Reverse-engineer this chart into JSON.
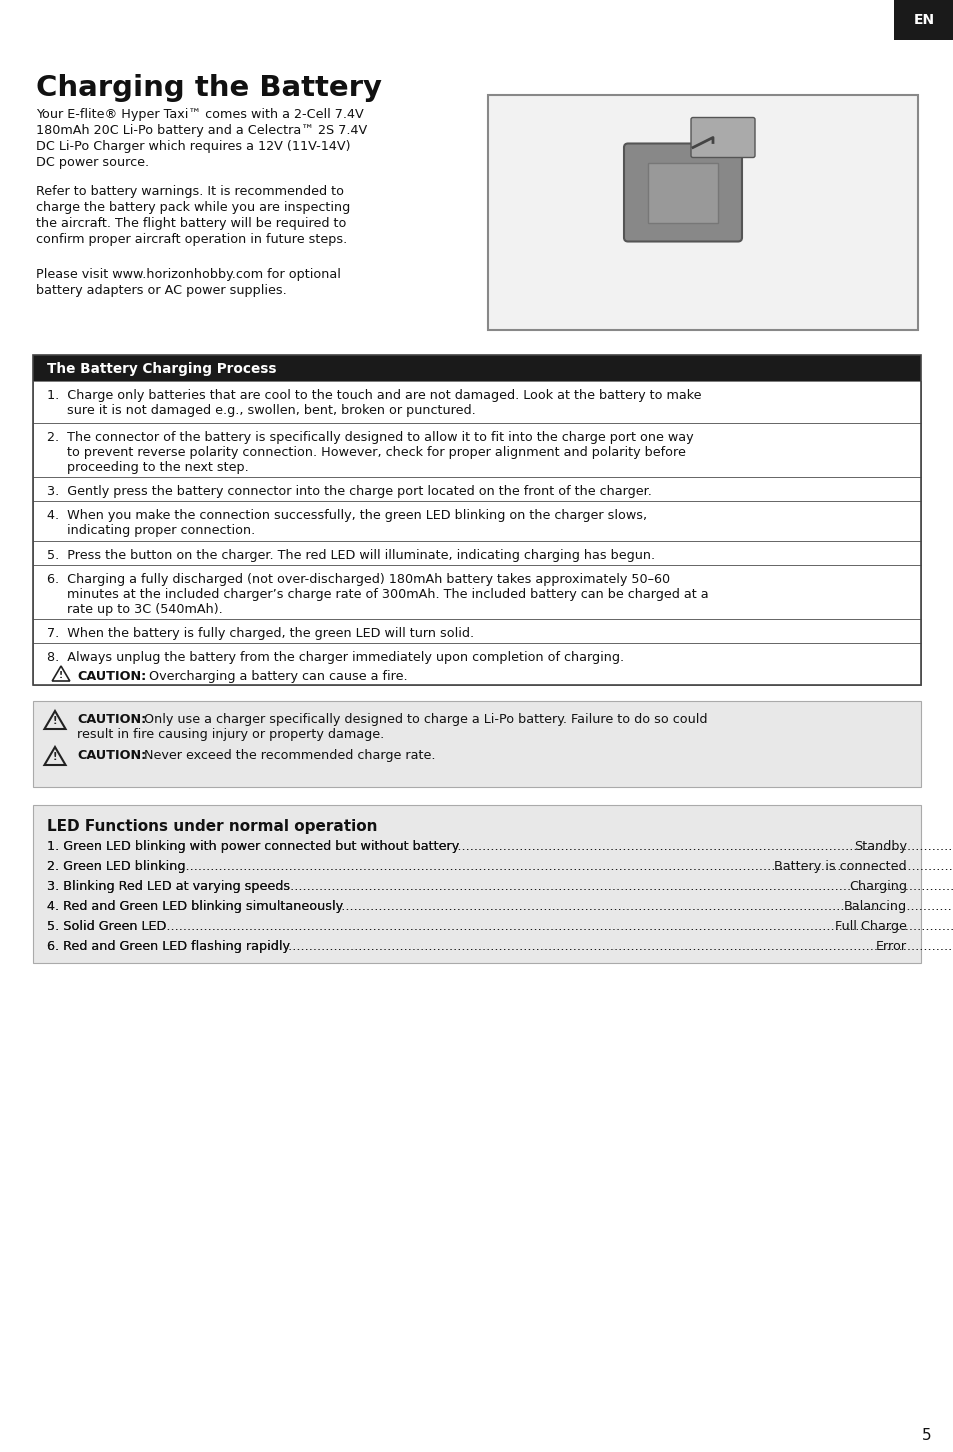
{
  "page_bg": "#ffffff",
  "top_tab_bg": "#1a1a1a",
  "top_tab_text": "EN",
  "top_tab_text_color": "#ffffff",
  "title": "Charging the Battery",
  "intro_para1_line1": "Your E-flite® Hyper Taxi™ comes with a 2-Cell 7.4V",
  "intro_para1_line2": "180mAh 20C Li-Po battery and a Celectra™ 2S 7.4V",
  "intro_para1_line3": "DC Li-Po Charger which requires a 12V (11V-14V)",
  "intro_para1_line4": "DC power source.",
  "intro_para2_line1": "Refer to battery warnings. It is recommended to",
  "intro_para2_line2": "charge the battery pack while you are inspecting",
  "intro_para2_line3": "the aircraft. The flight battery will be required to",
  "intro_para2_line4": "confirm proper aircraft operation in future steps.",
  "intro_para3_line1": "Please visit www.horizonhobby.com for optional",
  "intro_para3_line2": "battery adapters or AC power supplies.",
  "table_header": "The Battery Charging Process",
  "table_header_bg": "#1a1a1a",
  "table_header_text_color": "#ffffff",
  "table_border": "#444444",
  "table_rows": [
    "1.  Charge only batteries that are cool to the touch and are not damaged. Look at the battery to make\n     sure it is not damaged e.g., swollen, bent, broken or punctured.",
    "2.  The connector of the battery is specifically designed to allow it to fit into the charge port one way\n     to prevent reverse polarity connection. However, check for proper alignment and polarity before\n     proceeding to the next step.",
    "3.  Gently press the battery connector into the charge port located on the front of the charger.",
    "4.  When you make the connection successfully, the green LED blinking on the charger slows,\n     indicating proper connection.",
    "5.  Press the button on the charger. The red LED will illuminate, indicating charging has begun.",
    "6.  Charging a fully discharged (not over-discharged) 180mAh battery takes approximately 50–60\n     minutes at the included charger’s charge rate of 300mAh. The included battery can be charged at a\n     rate up to 3C (540mAh).",
    "7.  When the battery is fully charged, the green LED will turn solid.",
    "8.  Always unplug the battery from the charger immediately upon completion of charging."
  ],
  "row8_caution": "Overcharging a battery can cause a fire.",
  "caution_box_bg": "#e8e8e8",
  "caution1_bold": "CAUTION:",
  "caution1_rest": " Only use a charger specifically designed to charge a Li-Po battery. Failure to do so could",
  "caution1_line2": "result in fire causing injury or property damage.",
  "caution2_bold": "CAUTION:",
  "caution2_rest": " Never exceed the recommended charge rate.",
  "led_section_header": "LED Functions under normal operation",
  "led_section_bg": "#e8e8e8",
  "led_rows": [
    [
      "1. Green LED blinking with power connected but without battery",
      "Standby"
    ],
    [
      "2. Green LED blinking",
      "Battery is connected"
    ],
    [
      "3. Blinking Red LED at varying speeds",
      "Charging"
    ],
    [
      "4. Red and Green LED blinking simultaneously",
      "Balancing"
    ],
    [
      "5. Solid Green LED",
      "Full Charge"
    ],
    [
      "6. Red and Green LED flashing rapidly",
      "Error"
    ]
  ],
  "page_number": "5",
  "text_color": "#111111",
  "fs_body": 9.2,
  "fs_title": 21,
  "fs_table_hdr": 9.8,
  "fs_led_hdr": 11,
  "fs_page_num": 11
}
